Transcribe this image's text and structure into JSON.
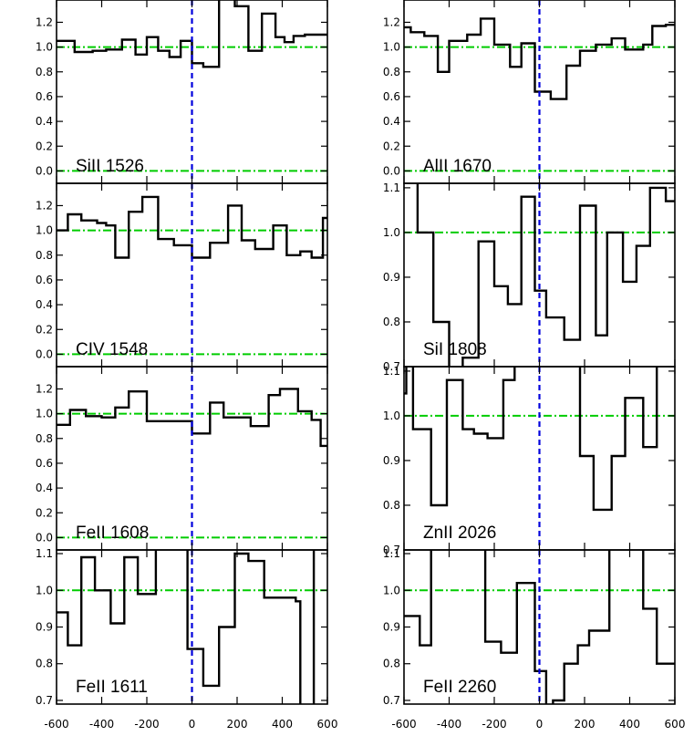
{
  "colors": {
    "frame": "#000000",
    "spectrum": "#000000",
    "reference_lines": "#00cc00",
    "zero_velocity": "#0000dd"
  },
  "chart_data": [
    {
      "type": "line",
      "label": "SiII 1526",
      "xlim": [
        -600,
        600
      ],
      "ylim": [
        -0.1,
        1.38
      ],
      "yticks": [
        0.0,
        0.2,
        0.4,
        0.6,
        0.8,
        1.0,
        1.2
      ],
      "ytick_labels": [
        "0.0",
        "0.2",
        "0.4",
        "0.6",
        "0.8",
        "1.0",
        "1.2"
      ],
      "hlines": [
        0.0,
        1.0
      ],
      "vline": 0,
      "step_x": [
        -600,
        -520,
        -440,
        -380,
        -310,
        -250,
        -200,
        -150,
        -100,
        -50,
        0,
        50,
        120,
        190,
        250,
        310,
        370,
        410,
        450,
        500,
        600
      ],
      "step_y": [
        1.05,
        0.96,
        0.97,
        0.98,
        1.06,
        0.94,
        1.08,
        0.97,
        0.92,
        1.05,
        0.87,
        0.84,
        1.44,
        1.33,
        0.97,
        1.27,
        1.08,
        1.04,
        1.09,
        1.1
      ]
    },
    {
      "type": "line",
      "label": "AlII 1670",
      "xlim": [
        -600,
        600
      ],
      "ylim": [
        -0.1,
        1.38
      ],
      "yticks": [
        0.0,
        0.2,
        0.4,
        0.6,
        0.8,
        1.0,
        1.2
      ],
      "ytick_labels": [
        "0.0",
        "0.2",
        "0.4",
        "0.6",
        "0.8",
        "1.0",
        "1.2"
      ],
      "hlines": [
        0.0,
        1.0
      ],
      "vline": 0,
      "step_x": [
        -600,
        -570,
        -510,
        -450,
        -400,
        -320,
        -260,
        -200,
        -130,
        -80,
        -20,
        50,
        120,
        180,
        250,
        320,
        380,
        460,
        500,
        560,
        600
      ],
      "step_y": [
        1.16,
        1.12,
        1.09,
        0.8,
        1.05,
        1.1,
        1.23,
        1.02,
        0.84,
        1.03,
        0.64,
        0.58,
        0.85,
        0.97,
        1.02,
        1.07,
        0.98,
        1.02,
        1.17,
        1.18
      ]
    },
    {
      "type": "line",
      "label": "CIV 1548",
      "xlim": [
        -600,
        600
      ],
      "ylim": [
        -0.1,
        1.38
      ],
      "yticks": [
        0.0,
        0.2,
        0.4,
        0.6,
        0.8,
        1.0,
        1.2
      ],
      "ytick_labels": [
        "0.0",
        "0.2",
        "0.4",
        "0.6",
        "0.8",
        "1.0",
        "1.2"
      ],
      "hlines": [
        0.0,
        1.0
      ],
      "vline": 0,
      "step_x": [
        -600,
        -550,
        -490,
        -420,
        -380,
        -340,
        -280,
        -220,
        -150,
        -80,
        0,
        80,
        160,
        220,
        280,
        360,
        420,
        480,
        530,
        580,
        600
      ],
      "step_y": [
        1.0,
        1.13,
        1.08,
        1.06,
        1.04,
        0.78,
        1.15,
        1.27,
        0.93,
        0.88,
        0.78,
        0.9,
        1.2,
        0.92,
        0.85,
        1.04,
        0.8,
        0.83,
        0.78,
        1.1
      ]
    },
    {
      "type": "line",
      "label": "SiI 1808",
      "xlim": [
        -600,
        600
      ],
      "ylim": [
        0.7,
        1.11
      ],
      "yticks": [
        0.7,
        0.8,
        0.9,
        1.0,
        1.1
      ],
      "ytick_labels": [
        "0.7",
        "0.8",
        "0.9",
        "1.0",
        "1.1"
      ],
      "hlines": [
        1.0
      ],
      "vline": 0,
      "step_x": [
        -600,
        -540,
        -470,
        -400,
        -340,
        -270,
        -200,
        -140,
        -80,
        -20,
        30,
        110,
        180,
        250,
        300,
        370,
        430,
        490,
        560,
        600
      ],
      "step_y": [
        1.12,
        1.0,
        0.8,
        0.69,
        0.72,
        0.98,
        0.88,
        0.84,
        1.08,
        0.87,
        0.81,
        0.76,
        1.06,
        0.77,
        1.0,
        0.89,
        0.97,
        1.1,
        1.07
      ]
    },
    {
      "type": "line",
      "label": "FeII 1608",
      "xlim": [
        -600,
        600
      ],
      "ylim": [
        -0.1,
        1.38
      ],
      "yticks": [
        0.0,
        0.2,
        0.4,
        0.6,
        0.8,
        1.0,
        1.2
      ],
      "ytick_labels": [
        "0.0",
        "0.2",
        "0.4",
        "0.6",
        "0.8",
        "1.0",
        "1.2"
      ],
      "hlines": [
        0.0,
        1.0
      ],
      "vline": 0,
      "step_x": [
        -600,
        -540,
        -470,
        -400,
        -340,
        -280,
        -200,
        -150,
        -80,
        0,
        80,
        140,
        200,
        260,
        340,
        390,
        470,
        530,
        570,
        600
      ],
      "step_y": [
        0.91,
        1.03,
        0.98,
        0.97,
        1.05,
        1.18,
        0.94,
        0.94,
        0.94,
        0.84,
        1.09,
        0.97,
        0.97,
        0.9,
        1.15,
        1.2,
        1.02,
        0.95,
        0.74
      ]
    },
    {
      "type": "line",
      "label": "ZnII 2026",
      "xlim": [
        -600,
        600
      ],
      "ylim": [
        0.7,
        1.11
      ],
      "yticks": [
        0.7,
        0.8,
        0.9,
        1.0,
        1.1
      ],
      "ytick_labels": [
        "0.7",
        "0.8",
        "0.9",
        "1.0",
        "1.1"
      ],
      "hlines": [
        1.0
      ],
      "vline": 0,
      "step_x": [
        -600,
        -590,
        -560,
        -480,
        -410,
        -340,
        -290,
        -230,
        -160,
        -110,
        -80,
        180,
        240,
        320,
        380,
        460,
        520,
        530,
        600
      ],
      "step_y": [
        1.05,
        1.12,
        0.97,
        0.8,
        1.08,
        0.97,
        0.96,
        0.95,
        1.08,
        1.18,
        1.12,
        0.91,
        0.79,
        0.91,
        1.04,
        0.93,
        1.12,
        1.12
      ]
    },
    {
      "type": "line",
      "label": "FeII 1611",
      "xlim": [
        -600,
        600
      ],
      "ylim": [
        0.69,
        1.11
      ],
      "yticks": [
        0.7,
        0.8,
        0.9,
        1.0,
        1.1
      ],
      "ytick_labels": [
        "0.7",
        "0.8",
        "0.9",
        "1.0",
        "1.1"
      ],
      "hlines": [
        1.0
      ],
      "vline": 0,
      "step_x": [
        -600,
        -550,
        -490,
        -430,
        -360,
        -300,
        -240,
        -160,
        -130,
        -20,
        50,
        120,
        190,
        250,
        320,
        460,
        480,
        540,
        600
      ],
      "step_y": [
        0.94,
        0.85,
        1.09,
        1.0,
        0.91,
        1.09,
        0.99,
        1.13,
        1.13,
        0.84,
        0.74,
        0.9,
        1.1,
        1.08,
        0.98,
        0.97,
        0.6,
        1.12
      ]
    },
    {
      "type": "line",
      "label": "FeII 2260",
      "xlim": [
        -600,
        600
      ],
      "ylim": [
        0.69,
        1.11
      ],
      "yticks": [
        0.7,
        0.8,
        0.9,
        1.0,
        1.1
      ],
      "ytick_labels": [
        "0.7",
        "0.8",
        "0.9",
        "1.0",
        "1.1"
      ],
      "hlines": [
        1.0
      ],
      "vline": 0,
      "step_x": [
        -600,
        -530,
        -480,
        -420,
        -240,
        -170,
        -100,
        -90,
        -20,
        30,
        60,
        110,
        170,
        220,
        310,
        380,
        460,
        520,
        600
      ],
      "step_y": [
        0.93,
        0.85,
        1.12,
        1.12,
        0.86,
        0.83,
        1.02,
        1.02,
        0.78,
        0.6,
        0.7,
        0.8,
        0.85,
        0.89,
        1.12,
        1.12,
        0.95,
        0.8
      ]
    }
  ],
  "x_axis": {
    "tick_values": [
      -600,
      -400,
      -200,
      0,
      200,
      400,
      600
    ],
    "tick_labels": [
      "-600",
      "-400",
      "-200",
      "0",
      "200",
      "400",
      "600"
    ]
  }
}
